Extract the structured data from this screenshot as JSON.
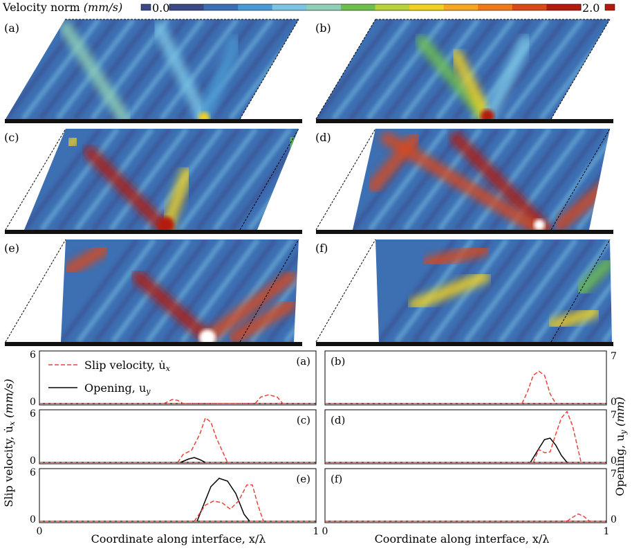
{
  "colorbar": {
    "title": "Velocity norm",
    "unit": "(mm/s)",
    "min_label": "0.0",
    "max_label": "2.0",
    "colors": [
      "#3b4a87",
      "#3d6fb3",
      "#4c9ad2",
      "#7cc4e4",
      "#8fcfb5",
      "#6fbf4f",
      "#b8d23a",
      "#f0d020",
      "#f5a623",
      "#ef7a1a",
      "#d84a1a",
      "#b31a0e"
    ]
  },
  "panel_labels": [
    "(a)",
    "(b)",
    "(c)",
    "(d)",
    "(e)",
    "(f)"
  ],
  "chart_data": [
    {
      "type": "line",
      "panels": [
        {
          "id": "(a)",
          "slip": [
            [
              0.45,
              0.0
            ],
            [
              0.48,
              0.5
            ],
            [
              0.5,
              0.4
            ],
            [
              0.52,
              0.0
            ],
            [
              0.78,
              0.0
            ],
            [
              0.8,
              0.8
            ],
            [
              0.83,
              1.1
            ],
            [
              0.86,
              0.8
            ],
            [
              0.88,
              0.0
            ]
          ],
          "opening": []
        },
        {
          "id": "(b)",
          "slip": [
            [
              0.7,
              0.0
            ],
            [
              0.72,
              1.5
            ],
            [
              0.74,
              3.5
            ],
            [
              0.76,
              4.0
            ],
            [
              0.78,
              3.5
            ],
            [
              0.8,
              1.2
            ],
            [
              0.82,
              0.0
            ]
          ],
          "opening": []
        },
        {
          "id": "(c)",
          "slip": [
            [
              0.5,
              0.0
            ],
            [
              0.52,
              1.0
            ],
            [
              0.55,
              1.5
            ],
            [
              0.58,
              3.5
            ],
            [
              0.6,
              5.5
            ],
            [
              0.62,
              5.0
            ],
            [
              0.64,
              3.0
            ],
            [
              0.66,
              1.5
            ],
            [
              0.68,
              0.0
            ]
          ],
          "opening": [
            [
              0.51,
              0.0
            ],
            [
              0.54,
              0.5
            ],
            [
              0.56,
              0.7
            ],
            [
              0.58,
              0.4
            ],
            [
              0.6,
              0.0
            ]
          ]
        },
        {
          "id": "(d)",
          "slip": [
            [
              0.74,
              0.0
            ],
            [
              0.76,
              1.6
            ],
            [
              0.78,
              1.2
            ],
            [
              0.8,
              1.3
            ],
            [
              0.82,
              3.5
            ],
            [
              0.84,
              5.5
            ],
            [
              0.86,
              6.3
            ],
            [
              0.88,
              4.5
            ],
            [
              0.9,
              1.5
            ],
            [
              0.91,
              0.0
            ]
          ],
          "opening": [
            [
              0.73,
              0.0
            ],
            [
              0.76,
              2.0
            ],
            [
              0.78,
              3.3
            ],
            [
              0.8,
              3.5
            ],
            [
              0.82,
              2.5
            ],
            [
              0.84,
              1.0
            ],
            [
              0.86,
              0.0
            ]
          ]
        },
        {
          "id": "(e)",
          "slip": [
            [
              0.56,
              0.0
            ],
            [
              0.58,
              1.0
            ],
            [
              0.6,
              2.0
            ],
            [
              0.63,
              2.5
            ],
            [
              0.66,
              2.3
            ],
            [
              0.69,
              1.5
            ],
            [
              0.72,
              2.5
            ],
            [
              0.75,
              4.5
            ],
            [
              0.77,
              4.5
            ],
            [
              0.79,
              2.0
            ],
            [
              0.81,
              0.0
            ]
          ],
          "opening": [
            [
              0.57,
              0.0
            ],
            [
              0.6,
              3.0
            ],
            [
              0.62,
              5.0
            ],
            [
              0.65,
              6.2
            ],
            [
              0.68,
              5.8
            ],
            [
              0.71,
              4.0
            ],
            [
              0.74,
              1.0
            ],
            [
              0.76,
              0.0
            ]
          ]
        },
        {
          "id": "(f)",
          "slip": [
            [
              0.86,
              0.0
            ],
            [
              0.88,
              0.5
            ],
            [
              0.9,
              0.9
            ],
            [
              0.92,
              0.6
            ],
            [
              0.94,
              0.0
            ]
          ],
          "opening": []
        }
      ],
      "legend": [
        "Slip velocity, u̇",
        "Opening, u"
      ],
      "xlabel": "Coordinate along interface, x/λ",
      "ylabel_left": "Slip velocity, u̇",
      "ylabel_left_unit": "(mm/s)",
      "ylabel_right": "Opening, u",
      "ylabel_right_unit": "(mm)",
      "xlim": [
        0,
        1
      ],
      "ylim_left": [
        0,
        6
      ],
      "ylim_right": [
        0,
        7
      ],
      "xticks": [
        "0",
        "1"
      ],
      "yticks_left": [
        "0",
        "6"
      ],
      "yticks_right": [
        "0",
        "7"
      ],
      "series_colors": {
        "slip": "#e8443a",
        "opening": "#000000"
      }
    }
  ]
}
